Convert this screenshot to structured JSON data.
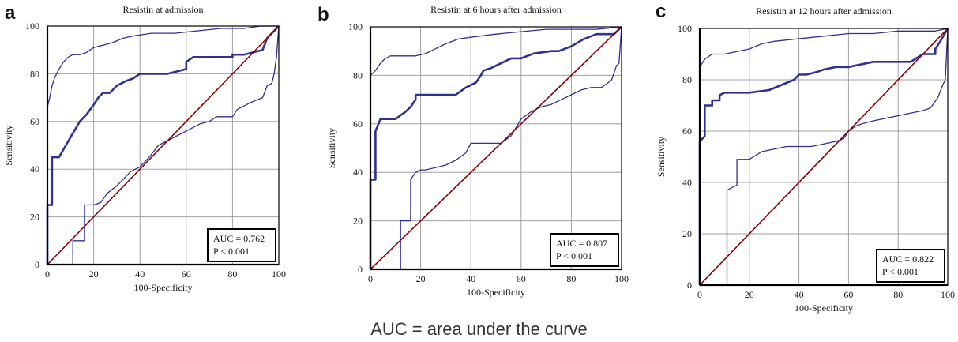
{
  "caption": "AUC = area under the curve",
  "colors": {
    "roc": "#2e3192",
    "diagonal": "#8b0000",
    "grid": "#a0a0a0",
    "axis": "#000000"
  },
  "chart_data": [
    {
      "type": "line",
      "panel": "a",
      "title": "Resistin at admission",
      "xlabel": "100-Specificity",
      "ylabel": "Sensitivity",
      "xlim": [
        0,
        100
      ],
      "ylim": [
        0,
        100
      ],
      "ticks": [
        0,
        20,
        40,
        60,
        80,
        100
      ],
      "grid": true,
      "annotation": [
        "AUC = 0.762",
        "P < 0.001"
      ],
      "annotation_position": "bottom-right",
      "series": [
        {
          "role": "roc",
          "x": [
            0,
            0,
            0,
            2,
            2,
            2.5,
            2.5,
            5,
            8,
            11,
            14,
            17,
            20,
            22,
            24,
            27,
            30,
            34,
            37,
            40,
            43,
            46,
            52,
            60,
            60,
            63,
            68,
            80,
            80,
            85,
            93,
            95,
            97,
            100
          ],
          "y": [
            0,
            25,
            25,
            25,
            45,
            45,
            45,
            45,
            50,
            55,
            60,
            63,
            67,
            70,
            72,
            72,
            75,
            77,
            78,
            80,
            80,
            80,
            80,
            82,
            85,
            87,
            87,
            87,
            88,
            88,
            90,
            95,
            97,
            100
          ]
        },
        {
          "role": "ci_upper",
          "x": [
            0,
            0,
            1,
            2,
            3,
            4,
            5,
            7,
            9,
            11,
            14,
            17,
            20,
            24,
            28,
            33,
            38,
            45,
            55,
            65,
            75,
            85,
            92,
            100
          ],
          "y": [
            0,
            66,
            70,
            75,
            78,
            80,
            82,
            85,
            87,
            88,
            88,
            89,
            91,
            92,
            93,
            95,
            96,
            97,
            97,
            98,
            99,
            99,
            100,
            100
          ]
        },
        {
          "role": "ci_lower",
          "x": [
            0,
            11,
            11,
            13,
            16,
            16,
            20,
            23,
            26,
            30,
            33,
            36,
            40,
            44,
            48,
            52,
            56,
            60,
            64,
            66,
            70,
            73,
            80,
            82,
            88,
            93,
            95,
            97,
            98,
            99,
            100
          ],
          "y": [
            0,
            0,
            10,
            10,
            10,
            25,
            25,
            26,
            30,
            33,
            36,
            39,
            41,
            45,
            50,
            52,
            54,
            56,
            58,
            59,
            60,
            62,
            62,
            65,
            68,
            70,
            75,
            76,
            80,
            87,
            100
          ]
        },
        {
          "role": "diagonal",
          "x": [
            0,
            100
          ],
          "y": [
            0,
            100
          ]
        }
      ]
    },
    {
      "type": "line",
      "panel": "b",
      "title": "Resistin at 6 hours after admission",
      "xlabel": "100-Specificity",
      "ylabel": "Sensitivity",
      "xlim": [
        0,
        100
      ],
      "ylim": [
        0,
        100
      ],
      "ticks": [
        0,
        20,
        40,
        60,
        80,
        100
      ],
      "grid": true,
      "annotation": [
        "AUC = 0.807",
        "P < 0.001"
      ],
      "annotation_position": "bottom-right",
      "series": [
        {
          "role": "roc",
          "x": [
            0,
            0,
            0,
            2,
            2,
            4,
            4,
            10,
            14,
            14,
            16,
            16,
            18,
            18,
            22,
            22,
            30,
            34,
            38,
            42,
            44,
            45,
            48,
            52,
            56,
            60,
            65,
            72,
            75,
            80,
            85,
            90,
            95,
            97,
            100
          ],
          "y": [
            0,
            37,
            37,
            37,
            57,
            62,
            62,
            62,
            65,
            65,
            67,
            67,
            70,
            72,
            72,
            72,
            72,
            72,
            75,
            77,
            80,
            82,
            83,
            85,
            87,
            87,
            89,
            90,
            90,
            92,
            95,
            97,
            97,
            97,
            100
          ]
        },
        {
          "role": "ci_upper",
          "x": [
            0,
            0,
            2,
            4,
            6,
            8,
            10,
            14,
            18,
            22,
            26,
            30,
            35,
            42,
            50,
            60,
            70,
            80,
            90,
            100
          ],
          "y": [
            0,
            80,
            82,
            85,
            87,
            88,
            88,
            88,
            88,
            89,
            91,
            93,
            95,
            96,
            97,
            98,
            99,
            99,
            99,
            100
          ]
        },
        {
          "role": "ci_lower",
          "x": [
            0,
            12,
            12,
            16,
            16,
            18,
            20,
            22,
            26,
            30,
            34,
            38,
            40,
            44,
            48,
            52,
            56,
            60,
            64,
            68,
            72,
            76,
            80,
            84,
            88,
            92,
            96,
            98,
            99,
            100
          ],
          "y": [
            0,
            0,
            20,
            20,
            37,
            40,
            41,
            41,
            42,
            43,
            45,
            48,
            52,
            52,
            52,
            52,
            55,
            62,
            65,
            67,
            68,
            70,
            72,
            74,
            75,
            75,
            78,
            84,
            85,
            100
          ]
        },
        {
          "role": "diagonal",
          "x": [
            0,
            100
          ],
          "y": [
            0,
            100
          ]
        }
      ]
    },
    {
      "type": "line",
      "panel": "c",
      "title": "Resistin at 12 hours after admission",
      "xlabel": "100-Specificity",
      "ylabel": "Sensitivity",
      "xlim": [
        0,
        100
      ],
      "ylim": [
        0,
        100
      ],
      "ticks": [
        0,
        20,
        40,
        60,
        80,
        100
      ],
      "grid": true,
      "annotation": [
        "AUC = 0.822",
        "P < 0.001"
      ],
      "annotation_position": "bottom-right",
      "series": [
        {
          "role": "roc",
          "x": [
            0,
            0,
            1,
            2,
            2,
            5,
            5,
            8,
            8,
            10,
            20,
            28,
            33,
            38,
            40,
            43,
            47,
            50,
            55,
            60,
            70,
            80,
            85,
            90,
            95,
            95,
            97,
            100
          ],
          "y": [
            0,
            56,
            57,
            58,
            70,
            70,
            72,
            72,
            74,
            75,
            75,
            76,
            78,
            80,
            82,
            82,
            83,
            84,
            85,
            85,
            87,
            87,
            87,
            90,
            90,
            92,
            95,
            100
          ]
        },
        {
          "role": "ci_upper",
          "x": [
            0,
            0,
            2,
            5,
            10,
            15,
            20,
            25,
            30,
            40,
            50,
            60,
            70,
            80,
            90,
            95,
            100
          ],
          "y": [
            0,
            85,
            88,
            90,
            90,
            91,
            92,
            94,
            95,
            96,
            97,
            98,
            98,
            99,
            99,
            99,
            100
          ]
        },
        {
          "role": "ci_lower",
          "x": [
            0,
            11,
            11,
            15,
            15,
            20,
            25,
            30,
            35,
            40,
            45,
            50,
            55,
            58,
            60,
            63,
            66,
            70,
            75,
            80,
            85,
            90,
            93,
            96,
            98,
            99,
            100
          ],
          "y": [
            0,
            0,
            37,
            39,
            49,
            49,
            52,
            53,
            54,
            54,
            54,
            55,
            56,
            57,
            60,
            62,
            63,
            64,
            65,
            66,
            67,
            68,
            69,
            73,
            78,
            80,
            100
          ]
        },
        {
          "role": "diagonal",
          "x": [
            0,
            100
          ],
          "y": [
            0,
            100
          ]
        }
      ]
    }
  ]
}
